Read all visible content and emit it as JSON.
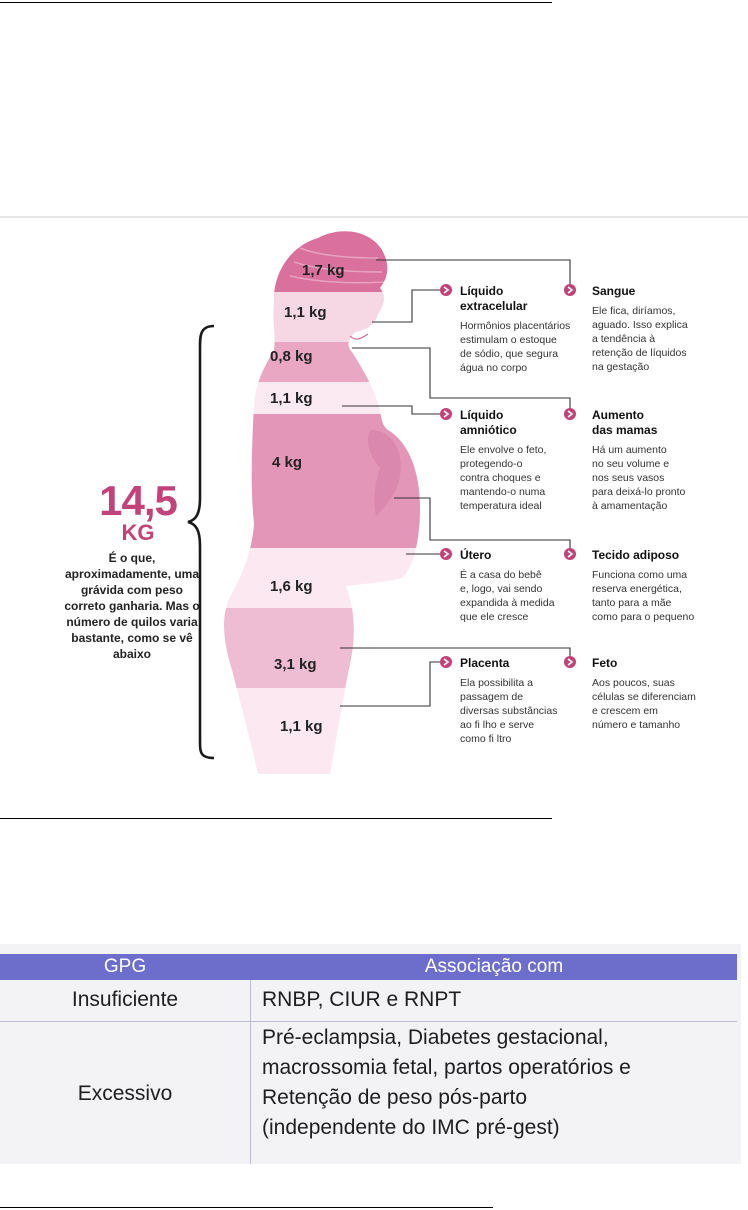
{
  "infographic": {
    "total": {
      "value": "14,5",
      "unit": "KG"
    },
    "total_description": "É o que, aproximadamente, uma grávida com peso correto ganharia. Mas o número de quilos varia bastante, como se vê abaixo",
    "weights": [
      "1,7 kg",
      "1,1 kg",
      "0,8 kg",
      "1,1 kg",
      "4 kg",
      "1,6 kg",
      "3,1 kg",
      "1,1 kg"
    ],
    "callouts": [
      {
        "title": "Líquido\nextracelular",
        "description": "Hormônios placentários\nestimulam o estoque\nde sódio, que segura\nágua no corpo"
      },
      {
        "title": "Sangue",
        "description": "Ele fica, diríamos,\naguado. Isso explica\na tendência à\nretenção de líquidos\nna gestação"
      },
      {
        "title": "Líquido\namniótico",
        "description": "Ele envolve o feto,\nprotegendo-o\ncontra choques e\nmantendo-o numa\ntemperatura ideal"
      },
      {
        "title": "Aumento\ndas mamas",
        "description": "Há um aumento\nno seu volume e\nnos seus vasos\npara deixá-lo pronto\nà amamentação"
      },
      {
        "title": "Útero",
        "description": "É a casa do bebê\ne, logo, vai sendo\nexpandida à medida\nque ele cresce"
      },
      {
        "title": "Tecido adiposo",
        "description": "Funciona como uma\nreserva energética,\ntanto para a mãe\ncomo para o pequeno"
      },
      {
        "title": "Placenta",
        "description": "Ela possibilita a\npassagem de\ndiversas substâncias\nao fi lho e serve\ncomo fi ltro"
      },
      {
        "title": "Feto",
        "description": "Aos poucos, suas\ncélulas se diferenciam\ne crescem em\nnúmero e tamanho"
      }
    ],
    "colors": {
      "accent": "#c2427a",
      "band_dark": "#d9709d",
      "band_mid": "#e9a7c4",
      "band_light": "#f6d8e5"
    }
  },
  "table": {
    "headers": [
      "GPG",
      "Associação com"
    ],
    "rows": [
      {
        "gpg": "Insuficiente",
        "association": [
          "RNBP, CIUR e RNPT"
        ]
      },
      {
        "gpg": "Excessivo",
        "association": [
          "Pré-eclampsia, Diabetes gestacional,",
          "macrossomia fetal, partos operatórios e",
          "Retenção de peso pós-parto",
          "(independente do IMC pré-gest)"
        ]
      }
    ],
    "colors": {
      "header_bg": "#6d6ecb",
      "header_text": "#ffffff",
      "body_bg": "#f3f3f5"
    }
  }
}
